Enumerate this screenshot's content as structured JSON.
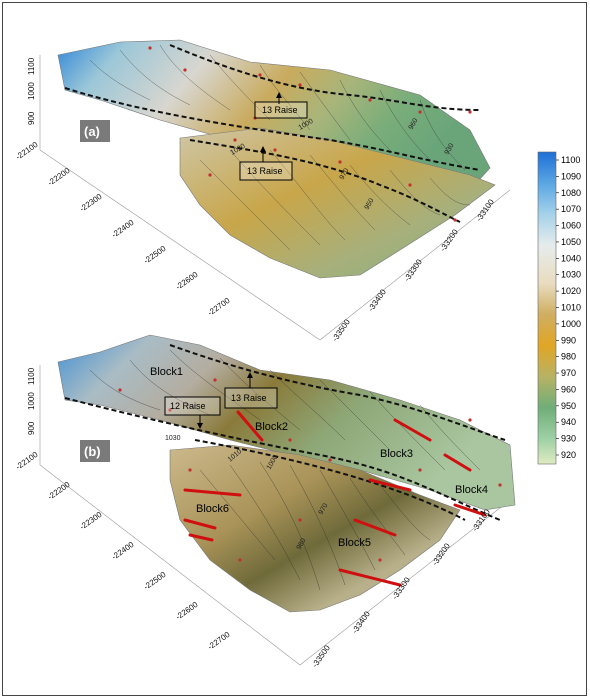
{
  "panels": [
    {
      "tag": "(a)",
      "raise_labels": [
        "13 Raise",
        "13 Raise"
      ],
      "contour_labels": [
        "1020",
        "1000",
        "970",
        "950",
        "930",
        "960"
      ],
      "y_ticks": [
        "-22100",
        "-22200",
        "-22300",
        "-22400",
        "-22500",
        "-22600",
        "-22700"
      ],
      "x_ticks": [
        "-33500",
        "-33400",
        "-33300",
        "-33200",
        "-33100"
      ],
      "z_ticks": [
        "1100",
        "1000",
        "900"
      ]
    },
    {
      "tag": "(b)",
      "raise_labels": [
        "12 Raise",
        "13 Raise"
      ],
      "block_labels": [
        "Block1",
        "Block2",
        "Block3",
        "Block4",
        "Block5",
        "Block6"
      ],
      "contour_labels": [
        "1030",
        "1010",
        "1000",
        "970",
        "980"
      ],
      "y_ticks": [
        "-22100",
        "-22200",
        "-22300",
        "-22400",
        "-22500",
        "-22600",
        "-22700"
      ],
      "x_ticks": [
        "-33500",
        "-33400",
        "-33300",
        "-33200",
        "-33100"
      ],
      "z_ticks": [
        "1100",
        "1000",
        "900"
      ]
    }
  ],
  "colorbar": {
    "ticks": [
      "1100",
      "1090",
      "1080",
      "1070",
      "1060",
      "1050",
      "1040",
      "1030",
      "1020",
      "1010",
      "1000",
      "990",
      "980",
      "970",
      "960",
      "950",
      "940",
      "930",
      "920"
    ],
    "colors": [
      "#1f6fd6",
      "#4aa0e0",
      "#8cc6e8",
      "#c8e2ea",
      "#e8e6d8",
      "#d9c89a",
      "#c9a24a",
      "#e0a82a",
      "#b9b36a",
      "#7fae7a",
      "#5ea46e",
      "#8ec99a",
      "#cde5b8"
    ]
  }
}
